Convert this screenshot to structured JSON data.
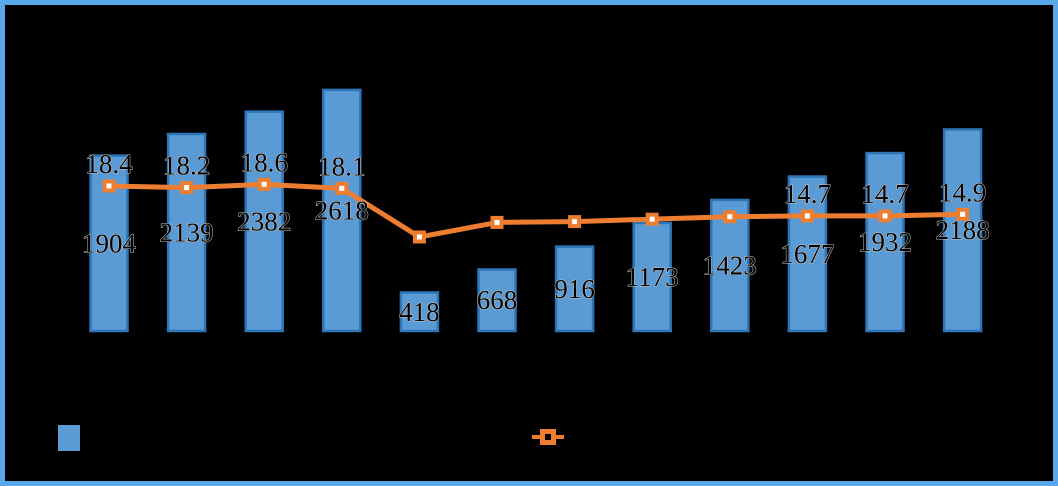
{
  "frame": {
    "background_color": "#000000",
    "border_color": "#58A8EA"
  },
  "chart_data": {
    "type": "combo-bar-line",
    "title": "",
    "bar_series": {
      "values": [
        1904,
        2139,
        2382,
        2618,
        418,
        668,
        916,
        1173,
        1423,
        1677,
        1932,
        2188
      ],
      "data_labels": [
        "1904",
        "2139",
        "2382",
        "2618",
        "418",
        "668",
        "916",
        "1173",
        "1423",
        "1677",
        "1932",
        "2188"
      ],
      "fill_color": "#5B9BD5",
      "border_color": "#2E75B6",
      "label_position": "center-inside"
    },
    "line_series": {
      "values": [
        18.4,
        18.2,
        18.6,
        18.1,
        12.1,
        13.9,
        14.0,
        14.3,
        14.6,
        14.7,
        14.7,
        14.9
      ],
      "data_labels": [
        "18.4",
        "18.2",
        "18.6",
        "18.1",
        "",
        "",
        "",
        "",
        "",
        "14.7",
        "14.7",
        "14.9"
      ],
      "color": "#ED7D31",
      "marker": "square",
      "marker_center_color": "#FFFFFF",
      "label_position": "above-point"
    },
    "axes": {
      "x_axis_labels_visible": false,
      "y_axis_labels_visible": false,
      "gridlines": false
    },
    "label_text_color": "#000000",
    "legend": {
      "position": "bottom",
      "entries": [
        {
          "swatch": "bar-square",
          "color": "#5B9BD5",
          "label": ""
        },
        {
          "swatch": "line-marker",
          "color": "#ED7D31",
          "label": ""
        }
      ]
    }
  }
}
